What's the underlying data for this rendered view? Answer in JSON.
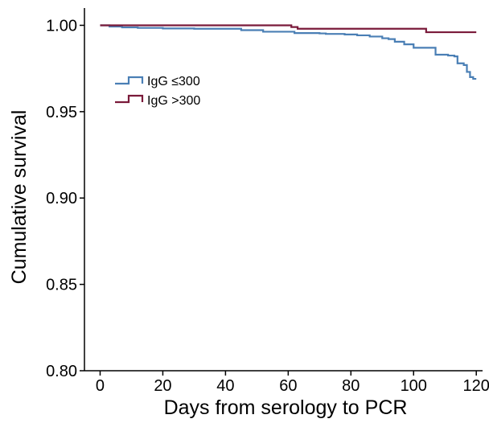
{
  "chart_data": {
    "type": "line",
    "step": true,
    "title": "",
    "xlabel": "Days from serology to PCR",
    "ylabel": "Cumulative survival",
    "xlim": [
      -5,
      122
    ],
    "ylim": [
      0.8,
      1.01
    ],
    "xticks": [
      0,
      20,
      40,
      60,
      80,
      100,
      120
    ],
    "yticks": [
      0.8,
      0.85,
      0.9,
      0.95,
      1.0
    ],
    "xtick_labels": [
      "0",
      "20",
      "40",
      "60",
      "80",
      "100",
      "120"
    ],
    "ytick_labels": [
      "0.80",
      "0.85",
      "0.90",
      "0.95",
      "1.00"
    ],
    "grid": false,
    "legend_position": "upper-left",
    "series": [
      {
        "name": "IgG ≤300",
        "color": "#4a7fb5",
        "x": [
          0,
          3,
          7,
          12,
          20,
          30,
          45,
          52,
          62,
          70,
          72,
          78,
          82,
          86,
          90,
          92,
          94,
          97,
          100,
          103,
          107,
          111,
          113,
          114,
          116,
          117,
          118,
          119,
          120
        ],
        "y": [
          1.0,
          0.9993,
          0.9988,
          0.9985,
          0.9982,
          0.998,
          0.9972,
          0.9963,
          0.9955,
          0.9953,
          0.995,
          0.9947,
          0.9942,
          0.9935,
          0.9925,
          0.992,
          0.9905,
          0.989,
          0.987,
          0.987,
          0.983,
          0.9825,
          0.982,
          0.978,
          0.977,
          0.973,
          0.97,
          0.969,
          0.969
        ]
      },
      {
        "name": "IgG >300",
        "color": "#7a1a3a",
        "x": [
          0,
          2,
          61,
          63,
          104,
          120
        ],
        "y": [
          1.0,
          1.0,
          0.999,
          0.998,
          0.996,
          0.996
        ]
      }
    ]
  }
}
